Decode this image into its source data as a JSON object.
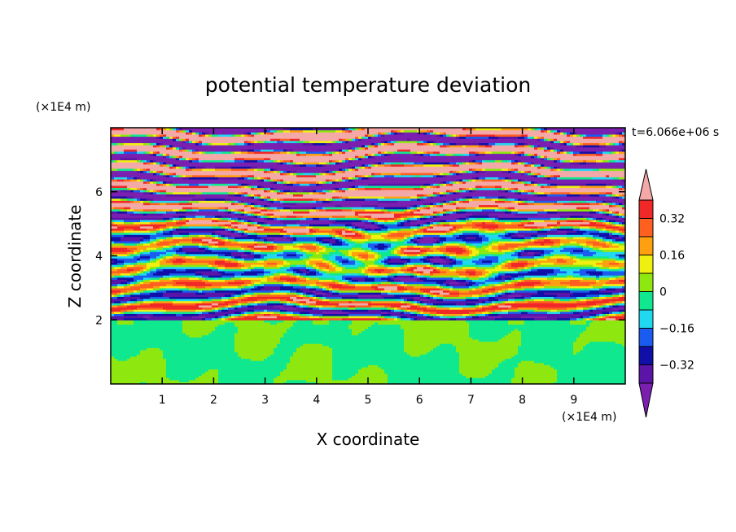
{
  "chart_data": {
    "type": "heatmap",
    "title": "potential temperature deviation",
    "xlabel": "X coordinate",
    "ylabel": "Z coordinate",
    "x_unit_label": "(×1E4 m)",
    "y_unit_label": "(×1E4 m)",
    "time_label": "t=6.066e+06 s",
    "xlim": [
      0,
      10
    ],
    "ylim": [
      0,
      8
    ],
    "x_ticks": [
      1,
      2,
      3,
      4,
      5,
      6,
      7,
      8,
      9
    ],
    "y_ticks": [
      2,
      4,
      6
    ],
    "x_tick_labels": [
      "1",
      "2",
      "3",
      "4",
      "5",
      "6",
      "7",
      "8",
      "9"
    ],
    "y_tick_labels": [
      "2",
      "4",
      "6"
    ],
    "colorbar": {
      "levels": [
        -0.4,
        -0.32,
        -0.24,
        -0.16,
        -0.08,
        0,
        0.08,
        0.16,
        0.24,
        0.32,
        0.4
      ],
      "tick_values": [
        0.32,
        0.16,
        0,
        -0.16,
        -0.32
      ],
      "tick_labels": [
        "0.32",
        "0.16",
        "0",
        "−0.16",
        "−0.32"
      ],
      "colors": [
        "#7a1fb0",
        "#5a14a8",
        "#1010a8",
        "#1a5cf0",
        "#20d8f0",
        "#10e890",
        "#8ee810",
        "#f0f010",
        "#ffa010",
        "#ff6020",
        "#f02828",
        "#f4a8a8"
      ],
      "extend": "both"
    },
    "regions": [
      {
        "z_range": [
          0,
          2
        ],
        "description_values": [
          0,
          0.08
        ],
        "pattern": "mixed"
      },
      {
        "z_range": [
          2,
          8
        ],
        "description_values": [
          -0.4,
          0.4
        ],
        "pattern": "layered"
      }
    ]
  }
}
